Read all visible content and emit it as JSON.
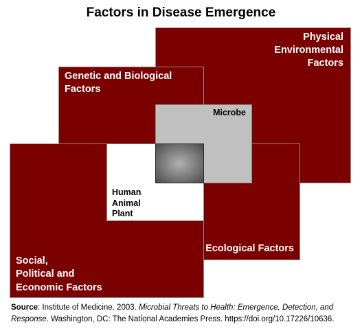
{
  "title": "Factors in Disease Emergence",
  "boxes": {
    "physical": "Physical\nEnvironmental\nFactors",
    "genetic": "Genetic and Biological\nFactors",
    "ecological": "Ecological Factors",
    "social": "Social,\nPolitical and\nEconomic Factors",
    "microbe": "Microbe",
    "host": "Human\nAnimal\nPlant"
  },
  "source": {
    "label": "Source",
    "text_before": ": Institute of Medicine. 2003. ",
    "italic_title": "Microbial Threats to Health: Emergence, Detection, and Response",
    "text_after": ". Washington, DC: The National Academies Press. https://doi.org/10.17226/10636."
  },
  "colors": {
    "factor_box": "#7b0000",
    "microbe_box": "#c0c0c0",
    "host_box": "#ffffff",
    "overlap_center": "#7a7a7a"
  }
}
